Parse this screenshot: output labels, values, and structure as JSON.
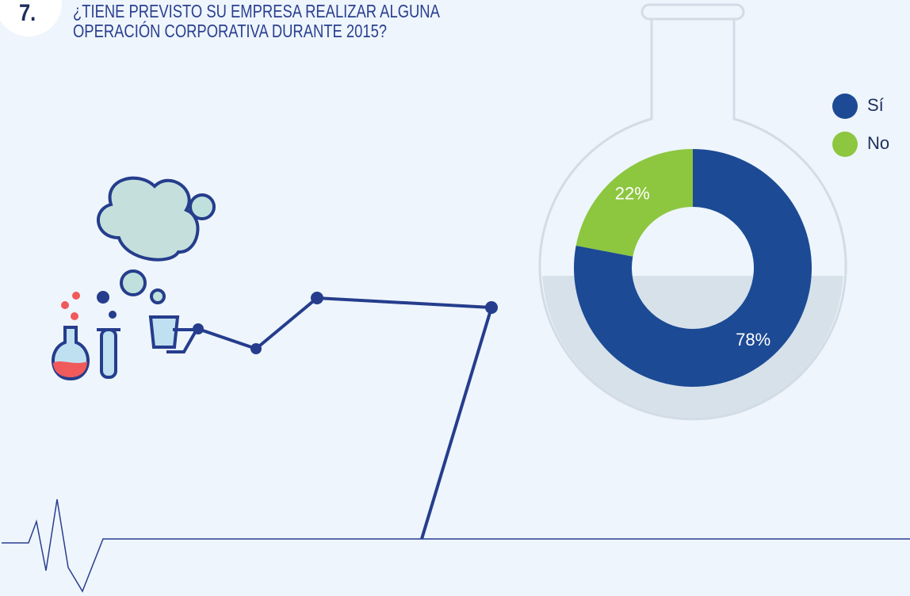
{
  "number": "7.",
  "chart_data": {
    "type": "donut",
    "title": "¿TIENE PREVISTO SU EMPRESA REALIZAR ALGUNA OPERACIÓN CORPORATIVA DURANTE 2015?",
    "categories": [
      "Sí",
      "No"
    ],
    "values": [
      78,
      22
    ],
    "value_labels": [
      "78%",
      "22%"
    ],
    "colors": [
      "#1c4a94",
      "#8dc63f"
    ],
    "legend": "top-right"
  }
}
